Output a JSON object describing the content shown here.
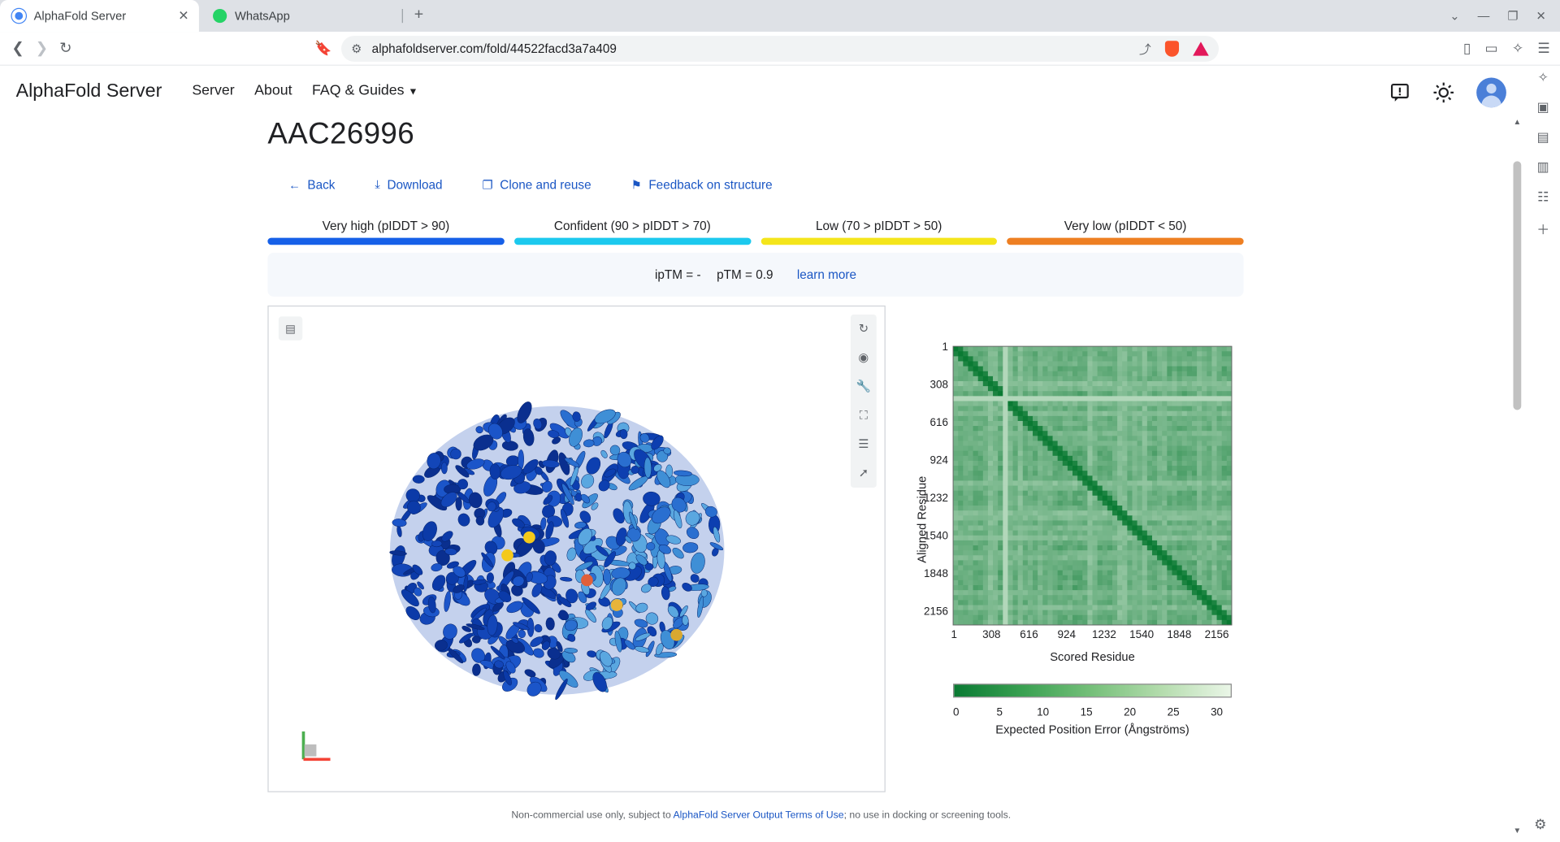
{
  "browser": {
    "tabs": [
      {
        "label": "AlphaFold Server",
        "favicon_color": "#4285f4"
      },
      {
        "label": "WhatsApp",
        "favicon_color": "#25d366"
      }
    ],
    "url": "alphafoldserver.com/fold/44522facd3a7a409"
  },
  "header": {
    "logo": "AlphaFold Server",
    "nav": [
      "Server",
      "About",
      "FAQ & Guides"
    ]
  },
  "page": {
    "title": "AAC26996",
    "actions": {
      "back": "Back",
      "download": "Download",
      "clone": "Clone and reuse",
      "feedback": "Feedback on structure"
    },
    "plddt_legend": [
      {
        "label": "Very high (pIDDT > 90)",
        "color": "#1660e8"
      },
      {
        "label": "Confident (90 > pIDDT > 70)",
        "color": "#1cc9ee"
      },
      {
        "label": "Low (70 > pIDDT > 50)",
        "color": "#f4e51b"
      },
      {
        "label": "Very low (pIDDT < 50)",
        "color": "#ee7f22"
      }
    ],
    "metrics": {
      "iptm": "ipTM = -",
      "ptm": "pTM = 0.9",
      "learn_more": "learn more"
    }
  },
  "chart_data": {
    "type": "heatmap",
    "xlabel": "Scored Residue",
    "ylabel": "Aligned Residue",
    "x_ticks": [
      "1",
      "308",
      "616",
      "924",
      "1232",
      "1540",
      "1848",
      "2156"
    ],
    "y_ticks": [
      "1",
      "308",
      "616",
      "924",
      "1232",
      "1540",
      "1848",
      "2156"
    ],
    "colorbar": {
      "label": "Expected Position Error (Ångströms)",
      "ticks": [
        "0",
        "5",
        "10",
        "15",
        "20",
        "25",
        "30"
      ],
      "range": [
        0,
        30
      ],
      "colors": [
        "#0a7a33",
        "#eaf6e7"
      ]
    },
    "residue_count": 2156
  },
  "footer": {
    "prefix": "Non-commercial use only, subject to ",
    "link": "AlphaFold Server Output Terms of Use",
    "suffix": "; no use in docking or screening tools."
  }
}
